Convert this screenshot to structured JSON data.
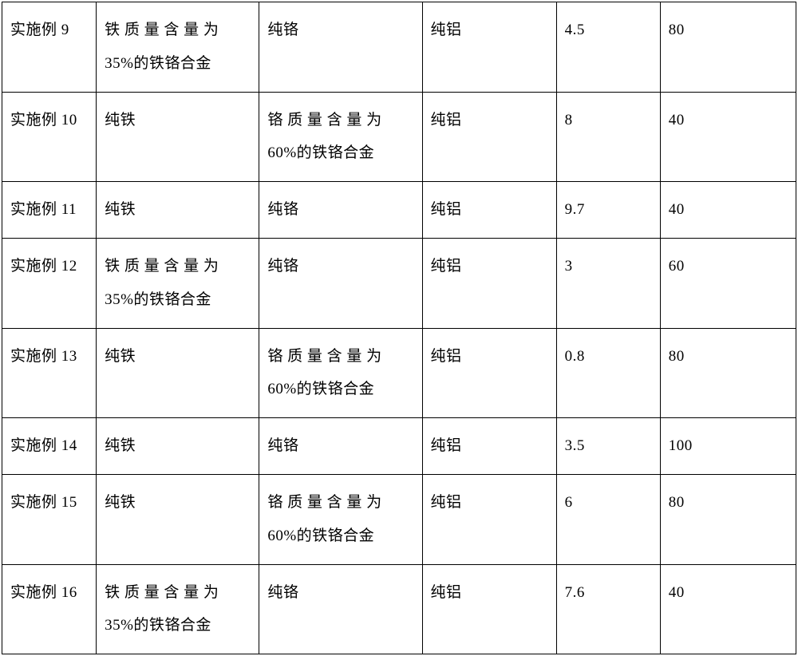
{
  "table": {
    "rows": [
      {
        "col1": "实施例 9",
        "col2_line1": "铁 质 量 含 量 为",
        "col2_line2": "35%的铁铬合金",
        "col3": "纯铬",
        "col4": "纯铝",
        "col5": "4.5",
        "col6": "80"
      },
      {
        "col1": "实施例 10",
        "col2": "纯铁",
        "col3_line1": "铬 质 量 含 量 为",
        "col3_line2": "60%的铁铬合金",
        "col4": "纯铝",
        "col5": "8",
        "col6": "40"
      },
      {
        "col1": "实施例 11",
        "col2": "纯铁",
        "col3": "纯铬",
        "col4": "纯铝",
        "col5": "9.7",
        "col6": "40"
      },
      {
        "col1": "实施例 12",
        "col2_line1": "铁 质 量 含 量 为",
        "col2_line2": "35%的铁铬合金",
        "col3": "纯铬",
        "col4": "纯铝",
        "col5": "3",
        "col6": "60"
      },
      {
        "col1": "实施例 13",
        "col2": "纯铁",
        "col3_line1": "铬 质 量 含 量 为",
        "col3_line2": "60%的铁铬合金",
        "col4": "纯铝",
        "col5": "0.8",
        "col6": "80"
      },
      {
        "col1": "实施例 14",
        "col2": "纯铁",
        "col3": "纯铬",
        "col4": "纯铝",
        "col5": "3.5",
        "col6": "100"
      },
      {
        "col1": "实施例 15",
        "col2": "纯铁",
        "col3_line1": "铬 质 量 含 量 为",
        "col3_line2": "60%的铁铬合金",
        "col4": "纯铝",
        "col5": "6",
        "col6": "80"
      },
      {
        "col1": "实施例 16",
        "col2_line1": "铁 质 量 含 量 为",
        "col2_line2": "35%的铁铬合金",
        "col3": "纯铬",
        "col4": "纯铝",
        "col5": "7.6",
        "col6": "40"
      }
    ]
  }
}
